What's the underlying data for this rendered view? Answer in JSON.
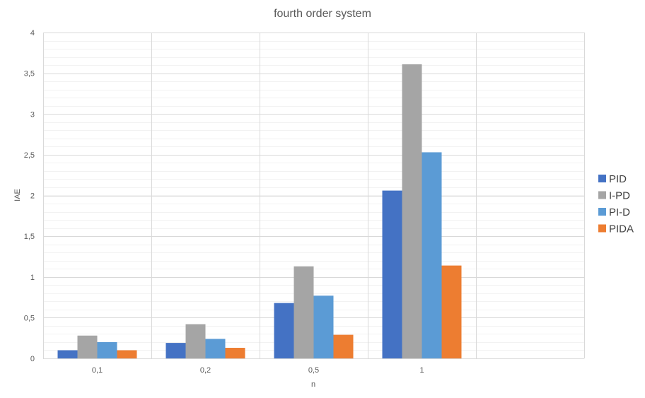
{
  "chart_data": {
    "type": "bar",
    "title": "fourth order system",
    "xlabel": "n",
    "ylabel": "IAE",
    "categories": [
      "0,1",
      "0,2",
      "0,5",
      "1",
      ""
    ],
    "ylim": [
      0,
      4
    ],
    "yticks": [
      "0",
      "0,5",
      "1",
      "1,5",
      "2",
      "2,5",
      "3",
      "3,5",
      "4"
    ],
    "grid": true,
    "legend_position": "right",
    "series": [
      {
        "name": "PID",
        "color": "#4472C4",
        "values": [
          0.1,
          0.19,
          0.68,
          2.06,
          null
        ]
      },
      {
        "name": "I-PD",
        "color": "#A5A5A5",
        "values": [
          0.28,
          0.42,
          1.13,
          3.61,
          null
        ]
      },
      {
        "name": "PI-D",
        "color": "#5B9BD5",
        "values": [
          0.2,
          0.24,
          0.77,
          2.53,
          null
        ]
      },
      {
        "name": "PIDA",
        "color": "#ED7D31",
        "values": [
          0.1,
          0.13,
          0.29,
          1.14,
          null
        ]
      }
    ]
  }
}
